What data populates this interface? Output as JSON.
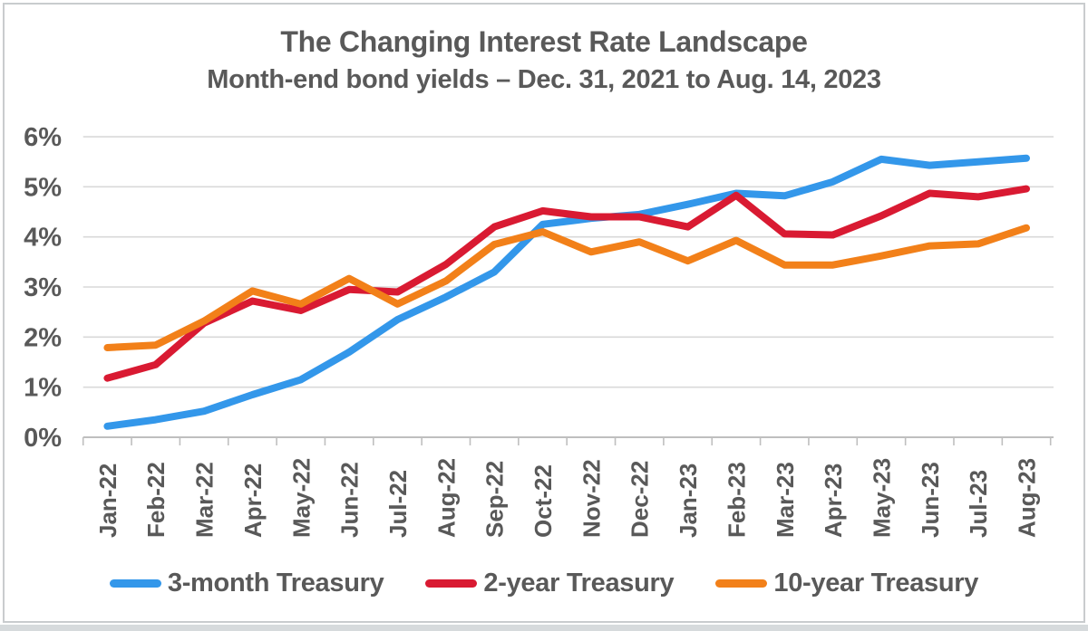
{
  "header": {
    "title": "The Changing Interest Rate Landscape",
    "subtitle": "Month-end bond yields – Dec. 31, 2021 to Aug. 14, 2023"
  },
  "colors": {
    "text": "#595959",
    "gridline": "#d9d9d9",
    "axis_line": "#bfbfbf",
    "series_blue": "#3397ea",
    "series_red": "#d91a32",
    "series_orange": "#f28019"
  },
  "chart_data": {
    "type": "line",
    "title": "The Changing Interest Rate Landscape",
    "subtitle": "Month-end bond yields – Dec. 31, 2021 to Aug. 14, 2023",
    "categories": [
      "Jan-22",
      "Feb-22",
      "Mar-22",
      "Apr-22",
      "May-22",
      "Jun-22",
      "Jul-22",
      "Aug-22",
      "Sep-22",
      "Oct-22",
      "Nov-22",
      "Dec-22",
      "Jan-23",
      "Feb-23",
      "Mar-23",
      "Apr-23",
      "May-23",
      "Jun-23",
      "Jul-23",
      "Aug-23"
    ],
    "series": [
      {
        "name": "3-month Treasury",
        "color": "#3397ea",
        "values": [
          0.22,
          0.35,
          0.52,
          0.85,
          1.15,
          1.7,
          2.35,
          2.8,
          3.3,
          4.25,
          4.37,
          4.45,
          4.65,
          4.87,
          4.82,
          5.1,
          5.55,
          5.43,
          5.5,
          5.57
        ]
      },
      {
        "name": "2-year Treasury",
        "color": "#d91a32",
        "values": [
          1.18,
          1.45,
          2.28,
          2.72,
          2.53,
          2.95,
          2.9,
          3.45,
          4.2,
          4.52,
          4.4,
          4.4,
          4.2,
          4.83,
          4.06,
          4.04,
          4.42,
          4.87,
          4.8,
          4.96
        ]
      },
      {
        "name": "10-year Treasury",
        "color": "#f28019",
        "values": [
          1.79,
          1.84,
          2.32,
          2.92,
          2.66,
          3.17,
          2.66,
          3.12,
          3.85,
          4.1,
          3.7,
          3.9,
          3.52,
          3.93,
          3.44,
          3.44,
          3.62,
          3.82,
          3.86,
          4.18
        ]
      }
    ],
    "xlabel": "",
    "ylabel": "",
    "ylim": [
      0,
      6
    ],
    "yticks": [
      "0%",
      "1%",
      "2%",
      "3%",
      "4%",
      "5%",
      "6%"
    ],
    "grid": "horizontal",
    "legend_position": "bottom"
  }
}
